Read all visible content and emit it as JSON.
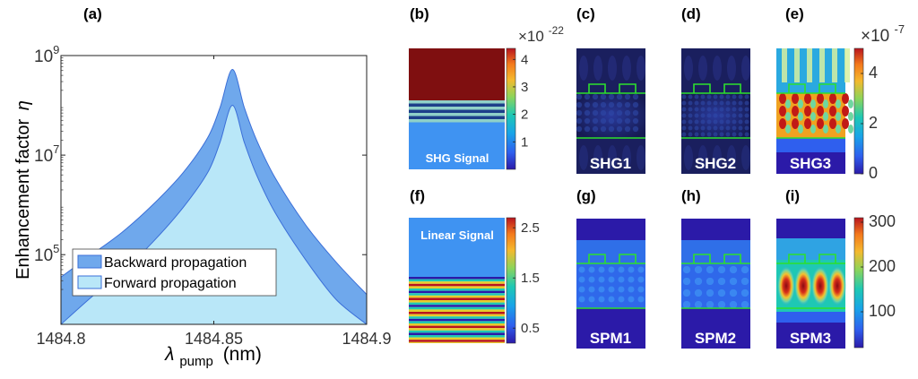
{
  "chart_data": [
    {
      "panel": "(a)",
      "type": "area",
      "ylabel": "Enhancement factor η",
      "xlabel": "λ pump (nm)",
      "xlabel_main": "λ",
      "xlabel_sub": "pump",
      "xlabel_unit": "(nm)",
      "ylabel_text": "Enhancement factor",
      "ylabel_symbol": "η",
      "xlim": [
        1484.8,
        1484.9
      ],
      "ylim_log10": [
        3.6,
        9
      ],
      "yscale": "log",
      "x_ticks": [
        "1484.8",
        "1484.85",
        "1484.9"
      ],
      "x_tick_values": [
        1484.8,
        1484.85,
        1484.9
      ],
      "y_ticks": [
        {
          "base": "10",
          "exp": "9",
          "value": 9
        },
        {
          "base": "10",
          "exp": "7",
          "value": 7
        },
        {
          "base": "10",
          "exp": "5",
          "value": 5
        }
      ],
      "legend_position": "bottom-left",
      "series": [
        {
          "name": "Backward propagation",
          "color": "#6fa8ec",
          "edge": "#3b6fd8",
          "peak_x": 1484.8561,
          "peak_log10": 8.72,
          "x": [
            1484.8,
            1484.81,
            1484.82,
            1484.83,
            1484.84,
            1484.848,
            1484.852,
            1484.8561,
            1484.86,
            1484.864,
            1484.87,
            1484.88,
            1484.89,
            1484.9
          ],
          "y_log10": [
            4.55,
            5.0,
            5.45,
            6.0,
            6.65,
            7.35,
            7.95,
            8.72,
            7.95,
            7.3,
            6.55,
            5.6,
            4.85,
            4.2
          ]
        },
        {
          "name": "Forward propagation",
          "color": "#b9e7f8",
          "edge": "#3b6fd8",
          "peak_x": 1484.8561,
          "peak_log10": 8.0,
          "x": [
            1484.8,
            1484.81,
            1484.82,
            1484.83,
            1484.84,
            1484.848,
            1484.852,
            1484.8561,
            1484.86,
            1484.864,
            1484.87,
            1484.88,
            1484.89,
            1484.9
          ],
          "y_log10": [
            3.6,
            4.15,
            4.65,
            5.25,
            5.95,
            6.65,
            7.25,
            8.0,
            7.25,
            6.6,
            5.85,
            4.9,
            4.1,
            3.6
          ]
        }
      ]
    },
    {
      "panel": "(b)",
      "type": "heatmap",
      "label": "SHG Signal",
      "colorbar_ticks": [
        "4",
        "3",
        "2",
        "1"
      ],
      "colorbar_tick_values": [
        4,
        3,
        2,
        1
      ],
      "colorbar_range": [
        0,
        4.4
      ],
      "colorbar_multiplier": "×10",
      "colorbar_multiplier_exp": "-22",
      "bands": [
        "#7f0f10",
        "#8fd0c8",
        "#1d3f8a",
        "#8fd0c8",
        "#1d3f8a",
        "#8fd0c8",
        "#1d3f8a",
        "#8fd0c8",
        "#3f93f2"
      ]
    },
    {
      "panel": "(c)",
      "type": "heatmap",
      "label": "SHG1",
      "style": "shg-dark"
    },
    {
      "panel": "(d)",
      "type": "heatmap",
      "label": "SHG2",
      "style": "shg-dark-checker"
    },
    {
      "panel": "(e)",
      "type": "heatmap",
      "label": "SHG3",
      "style": "shg-bright",
      "colorbar_ticks": [
        "4",
        "2",
        "0"
      ],
      "colorbar_tick_values": [
        4,
        2,
        0
      ],
      "colorbar_range": [
        0,
        5
      ],
      "colorbar_multiplier": "×10",
      "colorbar_multiplier_exp": "-7"
    },
    {
      "panel": "(f)",
      "type": "heatmap",
      "label": "Linear Signal",
      "colorbar_ticks": [
        "2.5",
        "1.5",
        "0.5"
      ],
      "colorbar_tick_values": [
        2.5,
        1.5,
        0.5
      ],
      "colorbar_range": [
        0.2,
        2.7
      ],
      "stripes": [
        "#1e2a78",
        "#3fb6c6",
        "#e7cc2a",
        "#b8141e",
        "#e7cc2a",
        "#3fb6c6"
      ]
    },
    {
      "panel": "(g)",
      "type": "heatmap",
      "label": "SPM1",
      "style": "spm-checker"
    },
    {
      "panel": "(h)",
      "type": "heatmap",
      "label": "SPM2",
      "style": "spm-soft"
    },
    {
      "panel": "(i)",
      "type": "heatmap",
      "label": "SPM3",
      "style": "spm-hot",
      "colorbar_ticks": [
        "300",
        "200",
        "100"
      ],
      "colorbar_tick_values": [
        300,
        200,
        100
      ],
      "colorbar_range": [
        20,
        310
      ]
    }
  ],
  "colors": {
    "jet": [
      "#2b1aa8",
      "#2f5fee",
      "#18a4e8",
      "#1ec8b4",
      "#8dd45a",
      "#f4b92e",
      "#f47a1c",
      "#b8141e"
    ],
    "guide_green": "#2de02d",
    "field_dark": "#1a1f5e",
    "label_white": "#ffffff"
  }
}
